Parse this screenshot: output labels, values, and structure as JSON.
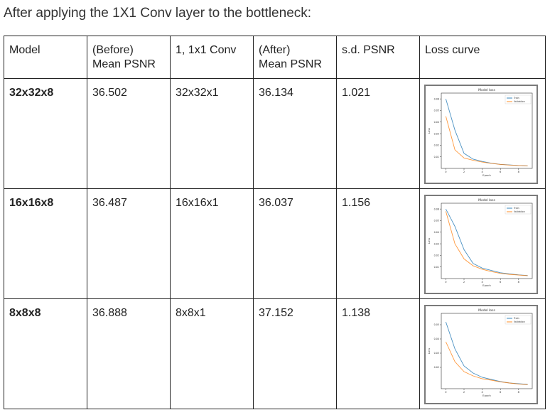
{
  "heading": "After applying the 1X1 Conv layer to the bottleneck:",
  "columns": [
    [
      "Model"
    ],
    [
      "(Before)",
      "Mean PSNR"
    ],
    [
      "1, 1x1 Conv"
    ],
    [
      "(After)",
      "Mean PSNR"
    ],
    [
      "s.d. PSNR"
    ],
    [
      "Loss curve"
    ]
  ],
  "rows": [
    {
      "model": "32x32x8",
      "before": "36.502",
      "conv": "32x32x1",
      "after": "36.134",
      "sd": "1.021"
    },
    {
      "model": "16x16x8",
      "before": "36.487",
      "conv": "16x16x1",
      "after": "36.037",
      "sd": "1.156"
    },
    {
      "model": "8x8x8",
      "before": "36.888",
      "conv": "8x8x1",
      "after": "37.152",
      "sd": "1.138"
    }
  ],
  "chart_data": [
    {
      "type": "line",
      "title": "Model loss",
      "xlabel": "Epoch",
      "ylabel": "Loss",
      "x": [
        0,
        1,
        2,
        3,
        4,
        5,
        6,
        7,
        8,
        9
      ],
      "xticks": [
        0,
        2,
        4,
        6,
        8
      ],
      "xlim": [
        -0.5,
        9.5
      ],
      "yticks": [
        0.01,
        0.02,
        0.03,
        0.04,
        0.05,
        0.06
      ],
      "ylim": [
        0.0,
        0.065
      ],
      "legend_position": "top-right",
      "grid": false,
      "series": [
        {
          "name": "Train",
          "color": "#1f77b4",
          "values": [
            0.06,
            0.033,
            0.013,
            0.008,
            0.006,
            0.0045,
            0.0035,
            0.003,
            0.0025,
            0.0022
          ]
        },
        {
          "name": "Validation",
          "color": "#ff7f0e",
          "values": [
            0.045,
            0.016,
            0.009,
            0.007,
            0.0055,
            0.0043,
            0.0034,
            0.0029,
            0.0025,
            0.0022
          ]
        }
      ]
    },
    {
      "type": "line",
      "title": "Model loss",
      "xlabel": "Epoch",
      "ylabel": "Loss",
      "x": [
        0,
        1,
        2,
        3,
        4,
        5,
        6,
        7,
        8,
        9
      ],
      "xticks": [
        0,
        2,
        4,
        6,
        8
      ],
      "xlim": [
        -0.5,
        9.5
      ],
      "yticks": [
        0.01,
        0.02,
        0.03,
        0.04,
        0.05,
        0.06
      ],
      "ylim": [
        0.0,
        0.065
      ],
      "legend_position": "top-right",
      "grid": false,
      "series": [
        {
          "name": "Train",
          "color": "#1f77b4",
          "values": [
            0.06,
            0.045,
            0.025,
            0.013,
            0.009,
            0.007,
            0.005,
            0.004,
            0.0032,
            0.0026
          ]
        },
        {
          "name": "Validation",
          "color": "#ff7f0e",
          "values": [
            0.058,
            0.03,
            0.017,
            0.011,
            0.008,
            0.006,
            0.0045,
            0.0036,
            0.003,
            0.0025
          ]
        }
      ]
    },
    {
      "type": "line",
      "title": "Model loss",
      "xlabel": "Epoch",
      "ylabel": "Loss",
      "x": [
        0,
        1,
        2,
        3,
        4,
        5,
        6,
        7,
        8,
        9
      ],
      "xticks": [
        0,
        2,
        4,
        6,
        8
      ],
      "xlim": [
        -0.5,
        9.5
      ],
      "yticks": [
        0.02,
        0.03,
        0.04,
        0.05
      ],
      "ylim": [
        0.005,
        0.058
      ],
      "legend_position": "top-right",
      "grid": false,
      "series": [
        {
          "name": "Train",
          "color": "#1f77b4",
          "values": [
            0.052,
            0.033,
            0.021,
            0.016,
            0.013,
            0.0115,
            0.01,
            0.009,
            0.0085,
            0.008
          ]
        },
        {
          "name": "Validation",
          "color": "#ff7f0e",
          "values": [
            0.038,
            0.024,
            0.017,
            0.014,
            0.012,
            0.011,
            0.0098,
            0.009,
            0.0083,
            0.0078
          ]
        }
      ]
    }
  ]
}
